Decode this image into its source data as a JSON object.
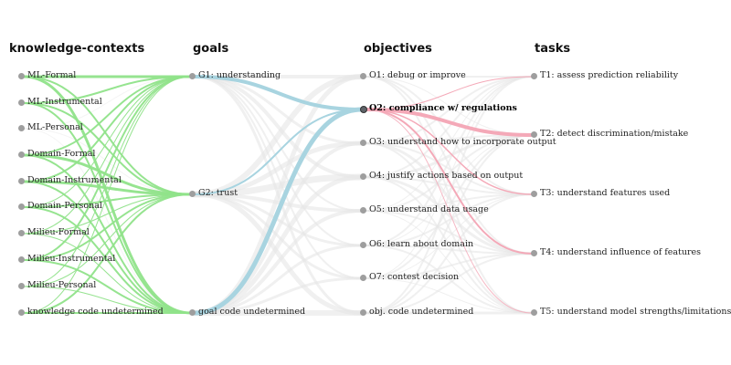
{
  "columns": [
    {
      "key": "kc",
      "title": "knowledge-contexts",
      "nodes": [
        "ML-Formal",
        "ML-Instrumental",
        "ML-Personal",
        "Domain-Formal",
        "Domain-Instrumental",
        "Domain-Personal",
        "Milieu-Formal",
        "Milieu-Instrumental",
        "Milieu-Personal",
        "knowledge code undetermined"
      ]
    },
    {
      "key": "goals",
      "title": "goals",
      "nodes": [
        "G1: understanding",
        "G2: trust",
        "goal code undetermined"
      ]
    },
    {
      "key": "obj",
      "title": "objectives",
      "nodes": [
        "O1: debug or improve",
        "O2: compliance w/ regulations",
        "O3: understand how to incorporate output",
        "O4: justify actions based on output",
        "O5: understand data usage",
        "O6: learn about domain",
        "O7: contest decision",
        "obj. code undetermined"
      ]
    },
    {
      "key": "tasks",
      "title": "tasks",
      "nodes": [
        "T1: assess prediction reliability",
        "T2: detect discrimination/mistake",
        "T3: understand features used",
        "T4: understand influence of features",
        "T5: understand model strengths/limitations"
      ]
    }
  ],
  "highlighted_node": "O2: compliance w/ regulations",
  "colors": {
    "kc_goal_links": "#90e38a",
    "goal_obj_links": "#a8d4e0",
    "obj_task_links": "#f4a9b8",
    "background_links": "#e6e6e6",
    "node_dot": "#9e9e9e"
  }
}
